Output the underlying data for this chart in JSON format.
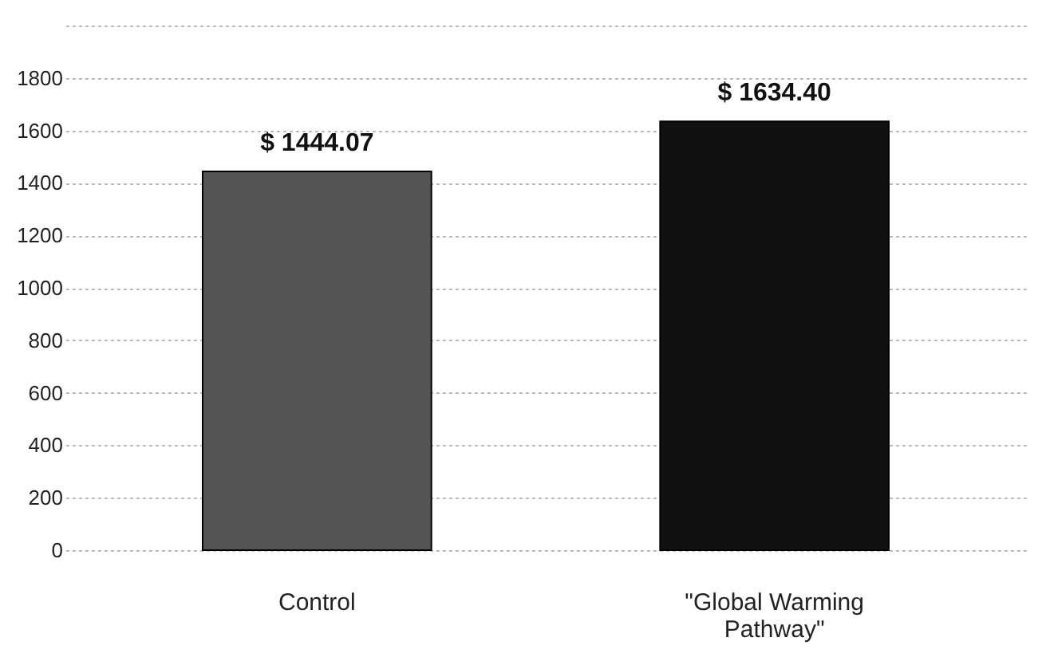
{
  "chart_data": {
    "type": "bar",
    "categories": [
      "Control",
      "\"Global Warming Pathway\""
    ],
    "values": [
      1444.07,
      1634.4
    ],
    "colors": [
      "#555555",
      "#111111"
    ],
    "value_labels": [
      "$ 1444.07",
      "$ 1634.40"
    ],
    "ylim": [
      0,
      2000
    ],
    "yticks": [
      0,
      200,
      400,
      600,
      800,
      1000,
      1200,
      1400,
      1600,
      1800,
      {
        "value": 2000,
        "label": null
      }
    ],
    "grid": "y"
  }
}
